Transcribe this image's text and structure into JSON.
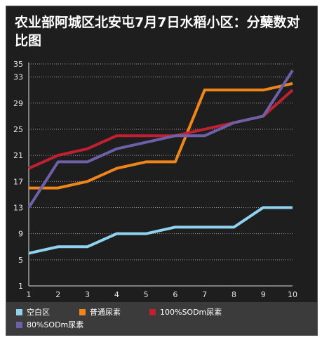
{
  "chart_data": {
    "type": "line",
    "title": "农业部阿城区北安屯7月7日水稻小区：分蘖数对比图",
    "xlabel": "",
    "ylabel": "",
    "x": [
      1,
      2,
      3,
      4,
      5,
      6,
      7,
      8,
      9,
      10
    ],
    "ylim": [
      1,
      35
    ],
    "yticks": [
      1,
      5,
      9,
      13,
      17,
      21,
      25,
      29,
      33,
      35
    ],
    "grid": "horizontal dotted",
    "legend_position": "bottom",
    "series": [
      {
        "name": "空白区",
        "color": "#8fd3f0",
        "values": [
          6,
          7,
          7,
          9,
          9,
          10,
          10,
          10,
          13,
          13
        ]
      },
      {
        "name": "普通尿素",
        "color": "#f0861a",
        "values": [
          16,
          16,
          17,
          19,
          20,
          20,
          31,
          31,
          31,
          32
        ]
      },
      {
        "name": "100%SODm尿素",
        "color": "#c0202f",
        "values": [
          19,
          21,
          22,
          24,
          24,
          24,
          25,
          26,
          27,
          31
        ]
      },
      {
        "name": "80%SODm尿素",
        "color": "#6e5fa8",
        "values": [
          13,
          20,
          20,
          22,
          23,
          24,
          24,
          26,
          27,
          34
        ]
      }
    ]
  }
}
